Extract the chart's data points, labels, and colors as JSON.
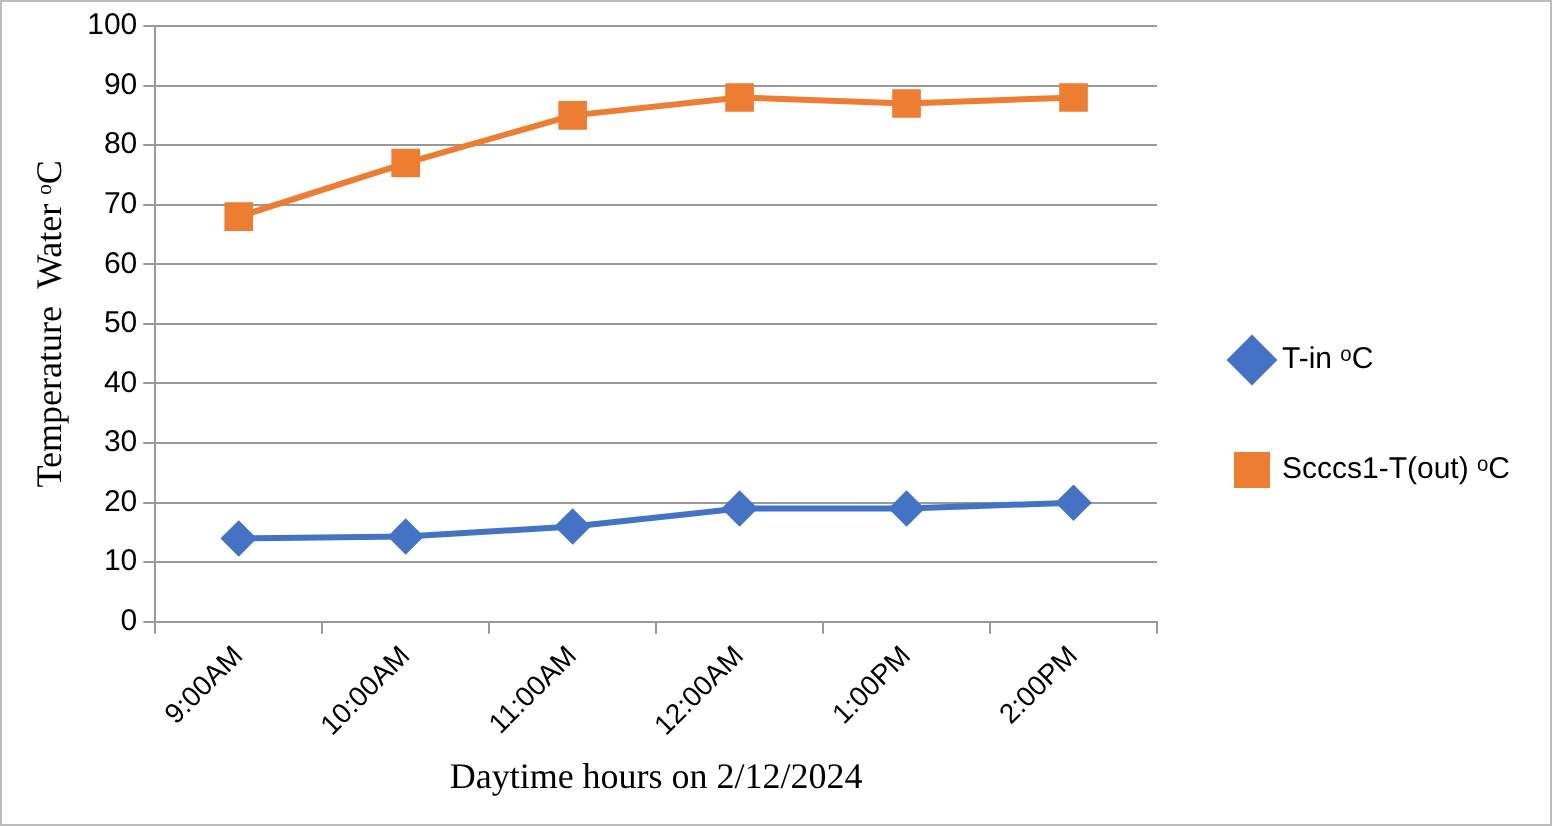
{
  "chart_data": {
    "type": "line",
    "xlabel": "Daytime hours on 2/12/2024",
    "ylabel": "Temperature  Water ᵒC",
    "categories": [
      "9:00AM",
      "10:00AM",
      "11:00AM",
      "12:00AM",
      "1:00PM",
      "2:00PM"
    ],
    "series": [
      {
        "name": "T-in ᵒC",
        "color": "#4472c4",
        "marker": "diamond",
        "values": [
          14,
          14.3,
          16,
          19,
          19,
          20
        ]
      },
      {
        "name": "Scccs1-T(out) ᵒC",
        "color": "#ed7d31",
        "marker": "square",
        "values": [
          68,
          77,
          85,
          88,
          87,
          88
        ]
      }
    ],
    "ylim": [
      0,
      100
    ],
    "yticks": [
      0,
      10,
      20,
      30,
      40,
      50,
      60,
      70,
      80,
      90,
      100
    ],
    "grid": "y",
    "legend": "right"
  }
}
